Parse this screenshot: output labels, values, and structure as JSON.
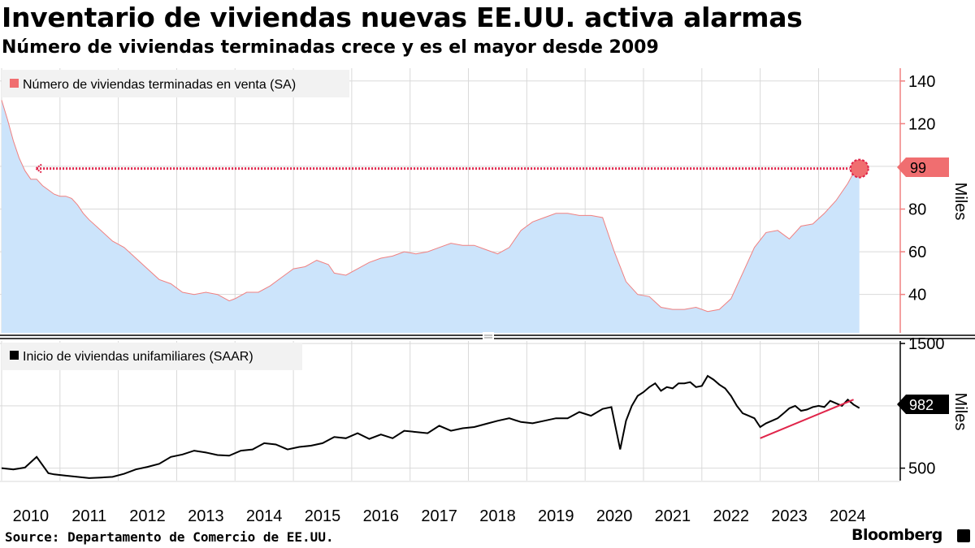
{
  "title": "Inventario de viviendas nuevas EE.UU. activa alarmas",
  "subtitle": "Número de viviendas terminadas crece y es el mayor desde 2009",
  "source": "Source: Departamento de Comercio de EE.UU.",
  "brand": "Bloomberg",
  "colors": {
    "area_fill": "#cce4fb",
    "area_line": "#f08080",
    "highlight": "#f06e70",
    "trend": "#e0254a",
    "line": "#000000",
    "grid": "#d9d9d9"
  },
  "chart_data": [
    {
      "type": "area",
      "legend": "Número de viviendas terminadas en venta (SA)",
      "ylabel": "Miles",
      "yticks": [
        40,
        60,
        80,
        100,
        120,
        140
      ],
      "ytick_labels": [
        "40",
        "60",
        "80",
        "",
        "120",
        "140"
      ],
      "ylim": [
        22,
        146
      ],
      "xlim": [
        2009.5,
        2024.9
      ],
      "last_value": 99,
      "last_value_label": "99",
      "reference_line": {
        "x_from": 2010.1,
        "x_to": 2024.2,
        "value": 99
      },
      "series": [
        {
          "name": "Viviendas terminadas en venta",
          "x": [
            2009.5,
            2009.6,
            2009.7,
            2009.8,
            2009.9,
            2010.0,
            2010.1,
            2010.2,
            2010.3,
            2010.4,
            2010.5,
            2010.6,
            2010.7,
            2010.8,
            2010.9,
            2011.0,
            2011.2,
            2011.4,
            2011.6,
            2011.8,
            2012.0,
            2012.2,
            2012.4,
            2012.6,
            2012.8,
            2013.0,
            2013.2,
            2013.4,
            2013.5,
            2013.7,
            2013.9,
            2014.1,
            2014.3,
            2014.5,
            2014.7,
            2014.9,
            2015.1,
            2015.2,
            2015.4,
            2015.6,
            2015.8,
            2016.0,
            2016.2,
            2016.4,
            2016.6,
            2016.8,
            2017.0,
            2017.2,
            2017.4,
            2017.6,
            2017.8,
            2018.0,
            2018.2,
            2018.4,
            2018.6,
            2018.8,
            2019.0,
            2019.2,
            2019.4,
            2019.6,
            2019.8,
            2020.0,
            2020.2,
            2020.4,
            2020.6,
            2020.8,
            2021.0,
            2021.2,
            2021.4,
            2021.6,
            2021.8,
            2022.0,
            2022.2,
            2022.4,
            2022.6,
            2022.8,
            2023.0,
            2023.2,
            2023.4,
            2023.6,
            2023.8,
            2023.9,
            2024.0,
            2024.1,
            2024.2
          ],
          "values": [
            131,
            122,
            112,
            104,
            98,
            94,
            94,
            91,
            89,
            87,
            86,
            86,
            85,
            82,
            78,
            75,
            70,
            65,
            62,
            57,
            52,
            47,
            45,
            41,
            40,
            41,
            40,
            37,
            38,
            41,
            41,
            44,
            48,
            52,
            53,
            56,
            54,
            50,
            49,
            52,
            55,
            57,
            58,
            60,
            59,
            60,
            62,
            64,
            63,
            63,
            61,
            59,
            62,
            70,
            74,
            76,
            78,
            78,
            77,
            77,
            76,
            60,
            46,
            40,
            39,
            34,
            33,
            33,
            34,
            32,
            33,
            38,
            50,
            62,
            69,
            70,
            66,
            72,
            73,
            78,
            84,
            88,
            92,
            97,
            99
          ]
        }
      ]
    },
    {
      "type": "line",
      "legend": "Inicio de viviendas unifamiliares (SAAR)",
      "ylabel": "Miles",
      "yticks": [
        500,
        1000,
        1500
      ],
      "ytick_labels": [
        "500",
        "",
        "1500"
      ],
      "ylim": [
        400,
        1520
      ],
      "xlim": [
        2009.5,
        2024.9
      ],
      "last_value": 982,
      "last_value_label": "982",
      "categories": [
        "2010",
        "2011",
        "2012",
        "2013",
        "2014",
        "2015",
        "2016",
        "2017",
        "2018",
        "2019",
        "2020",
        "2021",
        "2022",
        "2023",
        "2024"
      ],
      "trendline": {
        "x": [
          2022.5,
          2024.1
        ],
        "values": [
          740,
          1050
        ]
      },
      "series": [
        {
          "name": "Inicio de viviendas unifamiliares",
          "x": [
            2009.5,
            2009.7,
            2009.9,
            2010.1,
            2010.3,
            2010.4,
            2010.6,
            2010.8,
            2011.0,
            2011.2,
            2011.4,
            2011.6,
            2011.8,
            2012.0,
            2012.2,
            2012.4,
            2012.6,
            2012.8,
            2013.0,
            2013.2,
            2013.4,
            2013.6,
            2013.8,
            2014.0,
            2014.2,
            2014.4,
            2014.6,
            2014.8,
            2015.0,
            2015.2,
            2015.4,
            2015.6,
            2015.8,
            2016.0,
            2016.2,
            2016.4,
            2016.6,
            2016.8,
            2017.0,
            2017.2,
            2017.4,
            2017.6,
            2017.8,
            2018.0,
            2018.2,
            2018.4,
            2018.6,
            2018.8,
            2019.0,
            2019.2,
            2019.4,
            2019.6,
            2019.8,
            2019.95,
            2020.1,
            2020.2,
            2020.3,
            2020.4,
            2020.5,
            2020.6,
            2020.7,
            2020.8,
            2020.9,
            2021.0,
            2021.1,
            2021.2,
            2021.3,
            2021.4,
            2021.5,
            2021.6,
            2021.7,
            2021.8,
            2021.9,
            2022.0,
            2022.1,
            2022.2,
            2022.3,
            2022.4,
            2022.5,
            2022.6,
            2022.7,
            2022.8,
            2022.9,
            2023.0,
            2023.1,
            2023.2,
            2023.3,
            2023.4,
            2023.5,
            2023.6,
            2023.7,
            2023.8,
            2023.9,
            2024.0,
            2024.1,
            2024.2
          ],
          "values": [
            500,
            490,
            505,
            590,
            460,
            450,
            440,
            430,
            420,
            425,
            430,
            455,
            490,
            510,
            535,
            590,
            610,
            640,
            625,
            605,
            600,
            640,
            650,
            700,
            690,
            650,
            670,
            680,
            700,
            750,
            740,
            780,
            735,
            770,
            740,
            800,
            790,
            780,
            840,
            800,
            820,
            830,
            855,
            880,
            900,
            870,
            860,
            880,
            900,
            900,
            950,
            920,
            975,
            990,
            650,
            880,
            1000,
            1080,
            1110,
            1150,
            1180,
            1120,
            1150,
            1140,
            1180,
            1180,
            1190,
            1150,
            1160,
            1240,
            1210,
            1170,
            1140,
            1080,
            1000,
            940,
            920,
            900,
            830,
            860,
            880,
            900,
            940,
            980,
            1000,
            960,
            970,
            990,
            1000,
            990,
            1040,
            1020,
            1000,
            1050,
            1010,
            982
          ]
        }
      ]
    }
  ]
}
